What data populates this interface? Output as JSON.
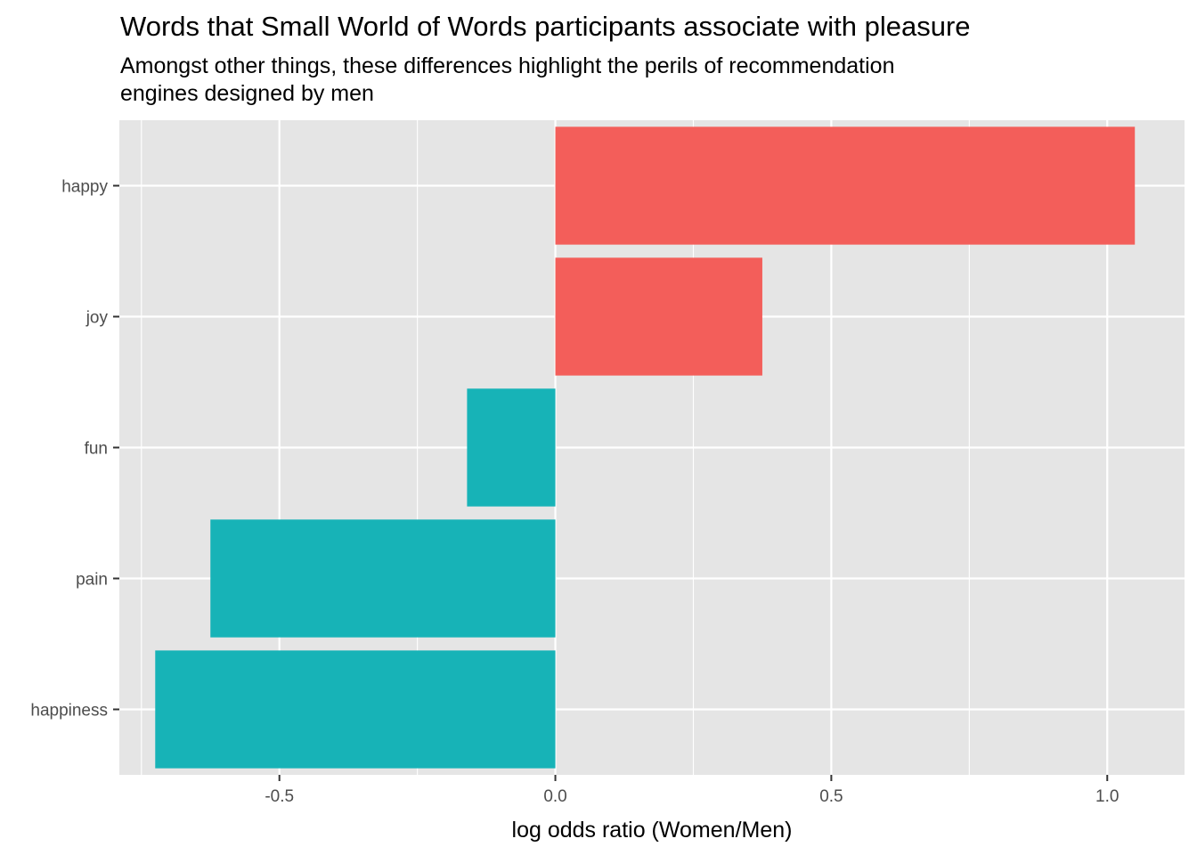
{
  "chart_data": {
    "type": "bar",
    "orientation": "horizontal",
    "title": "Words that Small World of Words participants associate with pleasure",
    "subtitle_lines": [
      "Amongst other things, these differences highlight the perils of recommendation",
      "engines designed by men"
    ],
    "xlabel": "log odds ratio (Women/Men)",
    "ylabel": "",
    "categories": [
      "happy",
      "joy",
      "fun",
      "pain",
      "happiness"
    ],
    "values": [
      1.05,
      0.375,
      -0.16,
      -0.625,
      -0.725
    ],
    "bar_colors": [
      "#F35E5A",
      "#F35E5A",
      "#17B3B7",
      "#17B3B7",
      "#17B3B7"
    ],
    "xlim": [
      -0.79,
      1.14
    ],
    "x_ticks": [
      -0.5,
      0.0,
      0.5,
      1.0
    ],
    "x_tick_labels": [
      "-0.5",
      "0.0",
      "0.5",
      "1.0"
    ],
    "grid": true,
    "legend": "none",
    "panel_background": "#E5E5E5",
    "grid_color": "#FFFFFF"
  }
}
